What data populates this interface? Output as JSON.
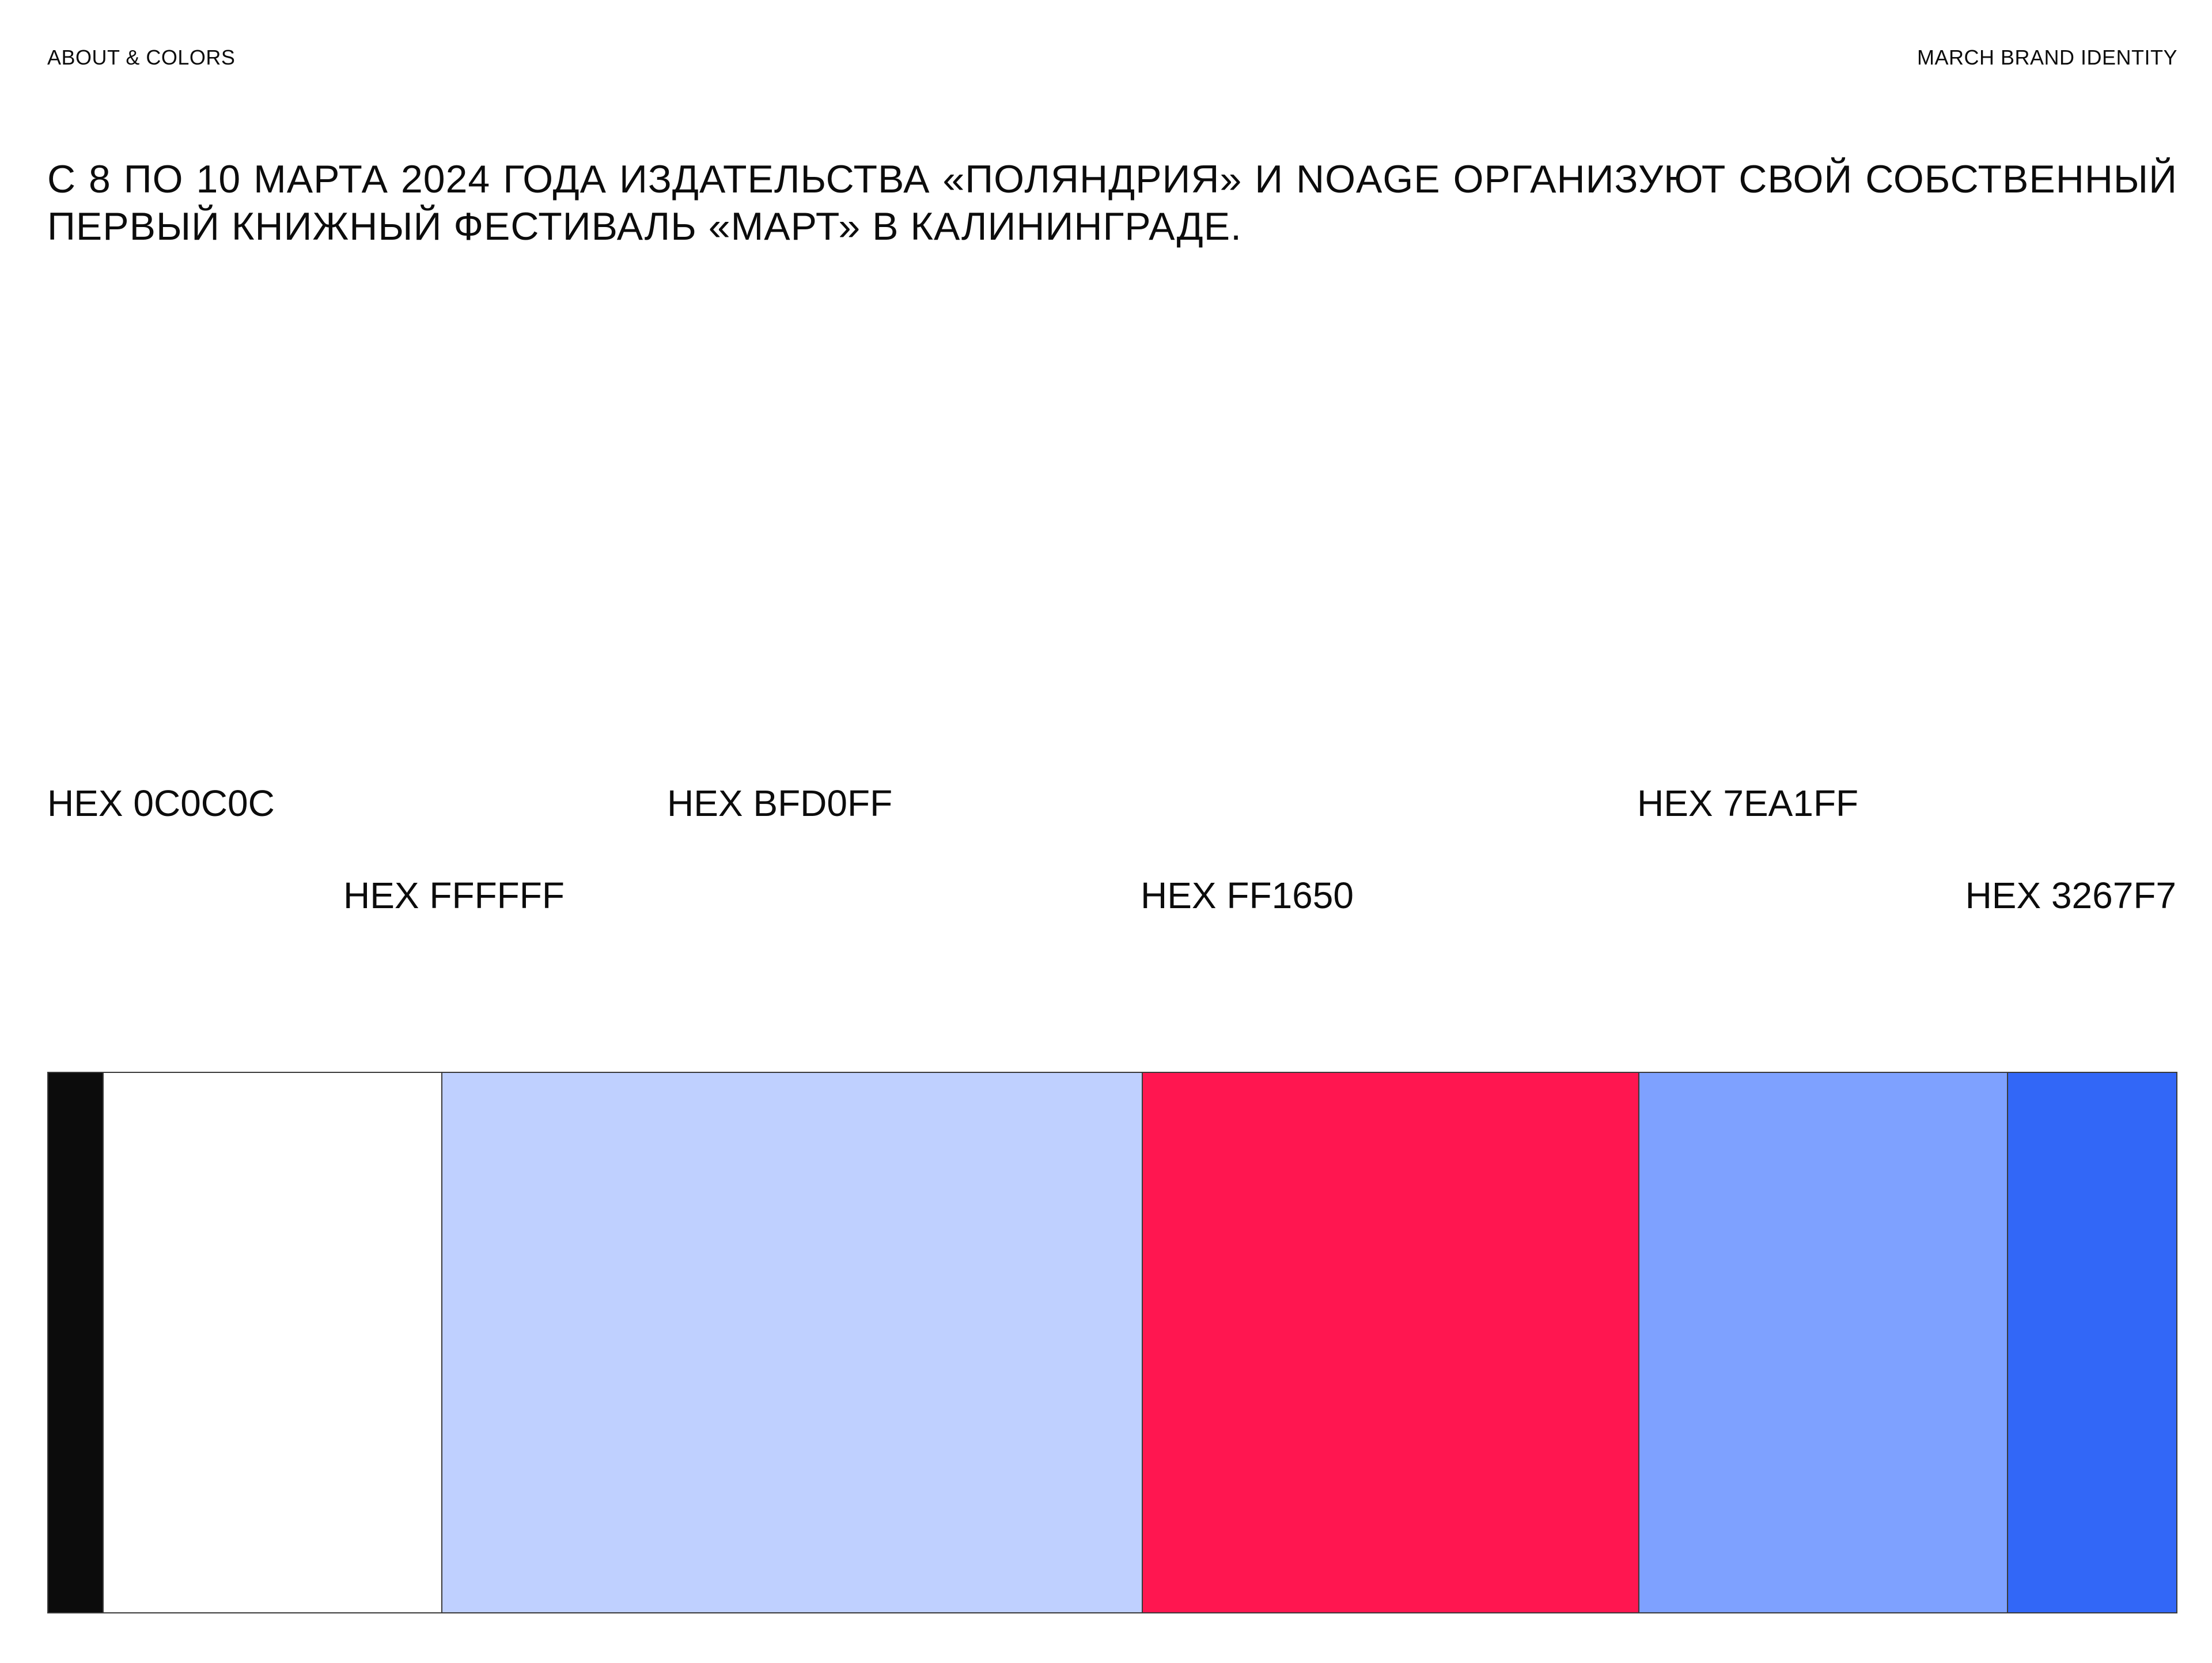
{
  "header": {
    "left_label": "ABOUT & COLORS",
    "right_label": "MARCH BRAND IDENTITY"
  },
  "intro": {
    "line1": "С 8 ПО 10 МАРТА 2024 ГОДА ИЗДАТЕЛЬСТВА «ПОЛЯНДРИЯ» И NOAGE ОРГАНИЗУЮТ СВОЙ СОБСТВЕННЫЙ",
    "line2": "ПЕРВЫЙ КНИЖНЫЙ ФЕСТИВАЛЬ «МАРТ» В КАЛИНИНГРАДЕ."
  },
  "palette": {
    "colors": [
      {
        "label": "HEX 0C0C0C",
        "hex": "#0C0C0C"
      },
      {
        "label": "HEX FFFFFF",
        "hex": "#FFFFFF"
      },
      {
        "label": "HEX BFD0FF",
        "hex": "#BFD0FF"
      },
      {
        "label": "HEX FF1650",
        "hex": "#FF1650"
      },
      {
        "label": "HEX 7EA1FF",
        "hex": "#7EA1FF"
      },
      {
        "label": "HEX 3267F7",
        "hex": "#3267F7"
      }
    ]
  }
}
